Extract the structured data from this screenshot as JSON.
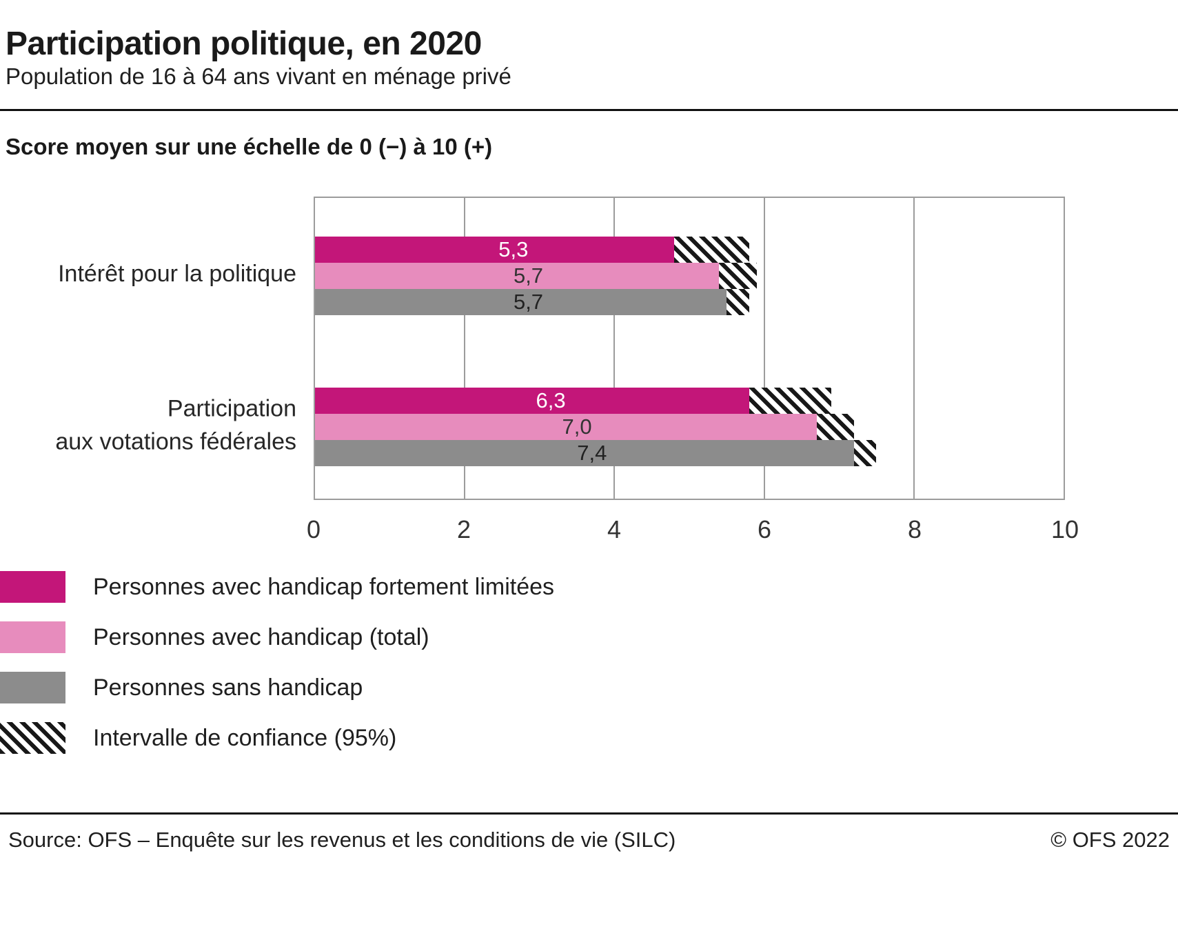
{
  "header": {
    "title": "Participation politique, en 2020",
    "subtitle": "Population de 16 à 64 ans vivant en ménage privé"
  },
  "chart_data": {
    "type": "bar",
    "orientation": "horizontal",
    "title": "Score moyen sur une échelle de 0 (−) à 10 (+)",
    "xlim": [
      0,
      10
    ],
    "xticks": [
      0,
      2,
      4,
      6,
      8,
      10
    ],
    "grid": "vertical",
    "categories": [
      "Intérêt pour la politique",
      "Participation\naux votations fédérales"
    ],
    "series": [
      {
        "name": "Personnes avec handicap fortement limitées",
        "color": "#c31679",
        "label_color": "#ffffff",
        "values": [
          5.3,
          6.3
        ],
        "labels": [
          "5,3",
          "6,3"
        ],
        "ci": [
          [
            4.8,
            5.8
          ],
          [
            5.8,
            6.9
          ]
        ]
      },
      {
        "name": "Personnes avec handicap (total)",
        "color": "#e78cbd",
        "label_color": "#333333",
        "values": [
          5.7,
          7.0
        ],
        "labels": [
          "5,7",
          "7,0"
        ],
        "ci": [
          [
            5.4,
            5.9
          ],
          [
            6.7,
            7.2
          ]
        ]
      },
      {
        "name": "Personnes sans handicap",
        "color": "#8c8c8c",
        "label_color": "#222222",
        "values": [
          5.7,
          7.4
        ],
        "labels": [
          "5,7",
          "7,4"
        ],
        "ci": [
          [
            5.5,
            5.8
          ],
          [
            7.2,
            7.5
          ]
        ]
      }
    ],
    "ci_label": "Intervalle de confiance (95%)"
  },
  "legend": {
    "items": [
      {
        "label": "Personnes avec handicap fortement limitées",
        "type": "solid",
        "color": "#c31679"
      },
      {
        "label": "Personnes avec handicap (total)",
        "type": "solid",
        "color": "#e78cbd"
      },
      {
        "label": "Personnes sans handicap",
        "type": "solid",
        "color": "#8c8c8c"
      },
      {
        "label": "Intervalle de confiance (95%)",
        "type": "hatch"
      }
    ]
  },
  "footer": {
    "source": "Source: OFS – Enquête sur les revenus et les conditions de vie (SILC)",
    "copyright": "© OFS 2022"
  }
}
